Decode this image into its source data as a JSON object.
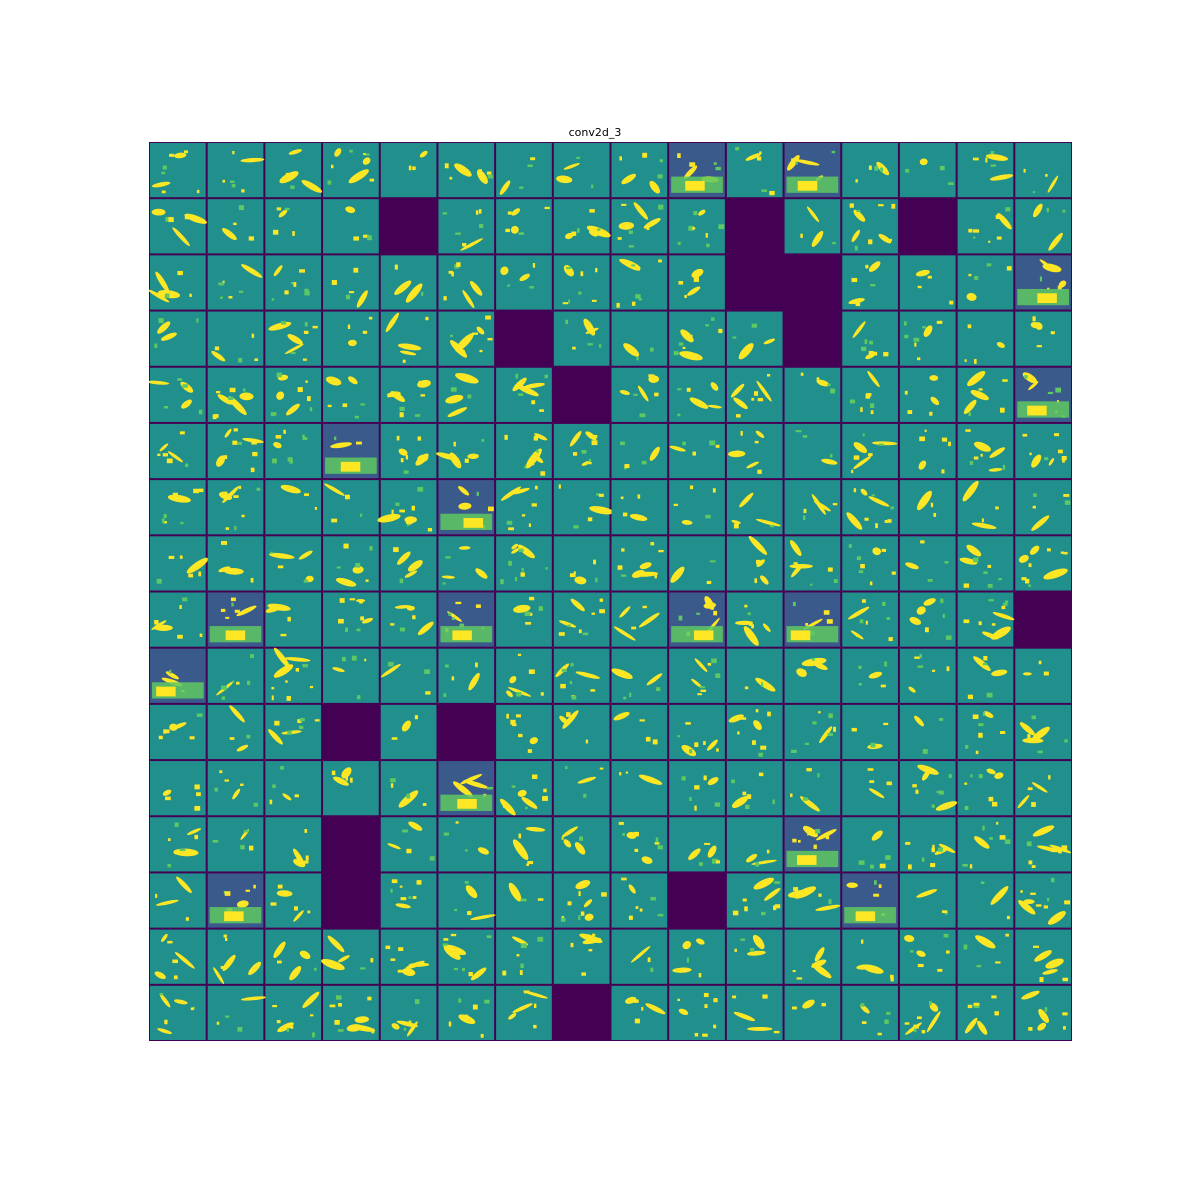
{
  "chart_data": {
    "type": "heatmap",
    "title": "conv2d_3",
    "rows": 16,
    "cols": 16,
    "colormap": "viridis",
    "colors": {
      "background": "#ffffff",
      "grid_line": "#440154",
      "dead_tile": "#440154",
      "tile_mid": "#21908d",
      "tile_low": "#3b5a8c",
      "activation": "#fde725",
      "activation_mid": "#5ec962"
    },
    "dead_tiles": [
      [
        1,
        4
      ],
      [
        1,
        10
      ],
      [
        1,
        13
      ],
      [
        2,
        10
      ],
      [
        2,
        11
      ],
      [
        3,
        6
      ],
      [
        3,
        11
      ],
      [
        4,
        7
      ],
      [
        8,
        15
      ],
      [
        10,
        3
      ],
      [
        10,
        5
      ],
      [
        12,
        3
      ],
      [
        13,
        3
      ],
      [
        13,
        9
      ],
      [
        15,
        7
      ]
    ],
    "strong_tiles": [
      [
        0,
        9
      ],
      [
        0,
        11
      ],
      [
        2,
        15
      ],
      [
        4,
        15
      ],
      [
        5,
        3
      ],
      [
        6,
        5
      ],
      [
        8,
        1
      ],
      [
        8,
        5
      ],
      [
        8,
        9
      ],
      [
        8,
        11
      ],
      [
        9,
        0
      ],
      [
        11,
        5
      ],
      [
        12,
        11
      ],
      [
        13,
        1
      ],
      [
        13,
        12
      ]
    ]
  }
}
